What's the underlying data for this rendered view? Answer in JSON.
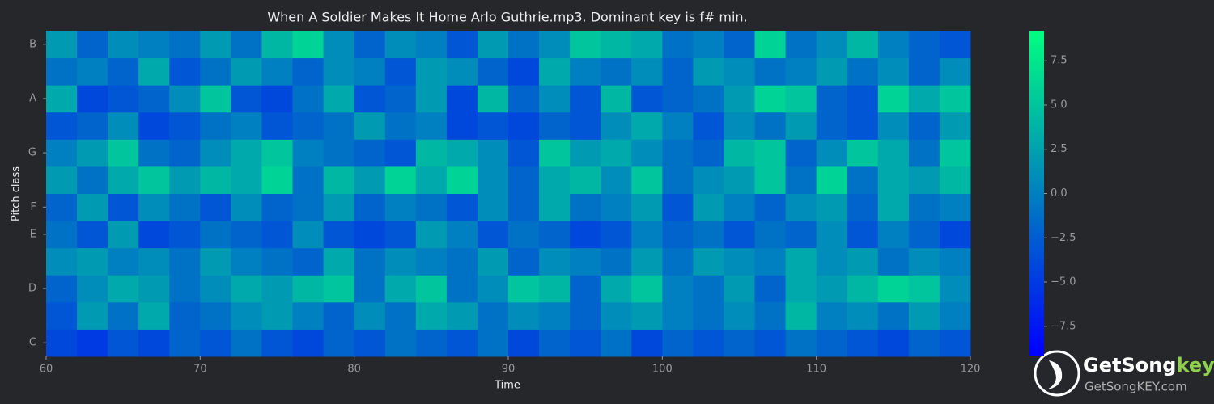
{
  "chart_data": {
    "type": "heatmap",
    "title": "When A Soldier Makes It Home Arlo Guthrie.mp3. Dominant key is f# min.",
    "x_label": "Time",
    "y_label": "Pitch class",
    "categories": [
      "C",
      null,
      "D",
      null,
      "E",
      "F",
      null,
      "G",
      null,
      "A",
      null,
      "B"
    ],
    "xbins": [
      60,
      62,
      64,
      66,
      68,
      70,
      72,
      74,
      76,
      78,
      80,
      82,
      84,
      86,
      88,
      90,
      92,
      94,
      96,
      98,
      100,
      102,
      104,
      106,
      108,
      110,
      112,
      114,
      116,
      118,
      120
    ],
    "xlim": [
      60,
      120
    ],
    "xticks": [
      60,
      70,
      80,
      90,
      100,
      110,
      120
    ],
    "z": [
      [
        -4,
        -5,
        -3,
        -4,
        -2,
        -3,
        -1,
        -3,
        -4,
        -2,
        -3,
        -1,
        -2,
        -3,
        -1,
        -4,
        -2,
        -3,
        -1,
        -4,
        -2,
        -3,
        -2,
        -3,
        -1,
        -2,
        -3,
        -4,
        -2,
        -3
      ],
      [
        -3,
        2,
        -1,
        3,
        -2,
        -1,
        1,
        2,
        0,
        -2,
        1,
        -1,
        3,
        2,
        -1,
        1,
        0,
        -2,
        1,
        2,
        0,
        -1,
        1,
        -1,
        4,
        0,
        1,
        -1,
        2,
        0
      ],
      [
        -2,
        1,
        3,
        2,
        -1,
        1,
        3,
        2,
        4,
        5,
        -1,
        3,
        5,
        -1,
        1,
        5,
        4,
        -2,
        3,
        5,
        0,
        -1,
        2,
        -2,
        3,
        2,
        4,
        6,
        5,
        1
      ],
      [
        1,
        2,
        0,
        1,
        -1,
        2,
        0,
        -1,
        -2,
        3,
        -1,
        1,
        0,
        -1,
        2,
        -2,
        1,
        0,
        -1,
        2,
        -1,
        2,
        1,
        0,
        3,
        1,
        2,
        -1,
        1,
        0
      ],
      [
        -1,
        -3,
        2,
        -4,
        -3,
        -1,
        -2,
        -3,
        1,
        -3,
        -4,
        -3,
        2,
        0,
        -3,
        -1,
        -2,
        -4,
        -3,
        0,
        -2,
        -1,
        -3,
        -1,
        -2,
        1,
        -3,
        0,
        -2,
        -4
      ],
      [
        -2,
        2,
        -3,
        1,
        -1,
        -3,
        1,
        -2,
        -1,
        2,
        -2,
        0,
        -1,
        -3,
        1,
        -2,
        3,
        -1,
        0,
        2,
        -3,
        2,
        0,
        -2,
        1,
        2,
        -2,
        3,
        -1,
        0
      ],
      [
        2,
        -1,
        3,
        5,
        2,
        4,
        3,
        6,
        -1,
        4,
        2,
        6,
        3,
        6,
        1,
        -2,
        3,
        4,
        1,
        5,
        -1,
        1,
        2,
        5,
        -1,
        6,
        -1,
        3,
        2,
        4
      ],
      [
        0,
        2,
        5,
        -1,
        -2,
        1,
        3,
        5,
        0,
        -1,
        -2,
        -3,
        4,
        3,
        1,
        -3,
        5,
        2,
        3,
        1,
        -1,
        -2,
        4,
        5,
        -2,
        1,
        5,
        3,
        -1,
        5
      ],
      [
        -3,
        -2,
        1,
        -4,
        -3,
        -1,
        0,
        -3,
        -2,
        -1,
        2,
        -1,
        0,
        -4,
        -3,
        -4,
        -2,
        -3,
        1,
        3,
        0,
        -3,
        1,
        -1,
        2,
        -2,
        -3,
        1,
        -2,
        2
      ],
      [
        3,
        -4,
        -3,
        -2,
        1,
        5,
        -3,
        -4,
        -1,
        3,
        -3,
        -2,
        2,
        -4,
        4,
        -2,
        1,
        -3,
        4,
        -3,
        -2,
        -1,
        2,
        6,
        5,
        -2,
        -3,
        6,
        3,
        5
      ],
      [
        -1,
        0,
        -2,
        3,
        -3,
        -1,
        2,
        0,
        -2,
        1,
        0,
        -3,
        2,
        1,
        -2,
        -4,
        3,
        0,
        -1,
        1,
        -2,
        2,
        1,
        -1,
        0,
        2,
        -1,
        1,
        -2,
        1
      ],
      [
        2,
        -2,
        1,
        0,
        -1,
        2,
        -1,
        4,
        6,
        1,
        -2,
        1,
        0,
        -3,
        2,
        -1,
        1,
        5,
        4,
        3,
        -1,
        0,
        -2,
        6,
        -1,
        1,
        4,
        0,
        -2,
        -3
      ]
    ],
    "zlim": [
      -9.2,
      9.2
    ],
    "zticks": [
      {
        "value": -7.5,
        "label": "−7.5"
      },
      {
        "value": -5,
        "label": "−5.0"
      },
      {
        "value": -2.5,
        "label": "−2.5"
      },
      {
        "value": 0,
        "label": "0.0"
      },
      {
        "value": 2.5,
        "label": "2.5"
      },
      {
        "value": 5,
        "label": "5.0"
      },
      {
        "value": 7.5,
        "label": "7.5"
      }
    ],
    "colormap": [
      "#0000ff",
      "#00ff80"
    ]
  },
  "logo": {
    "name": "GetSong",
    "accent": "key",
    "url": "GetSongKEY.com"
  }
}
